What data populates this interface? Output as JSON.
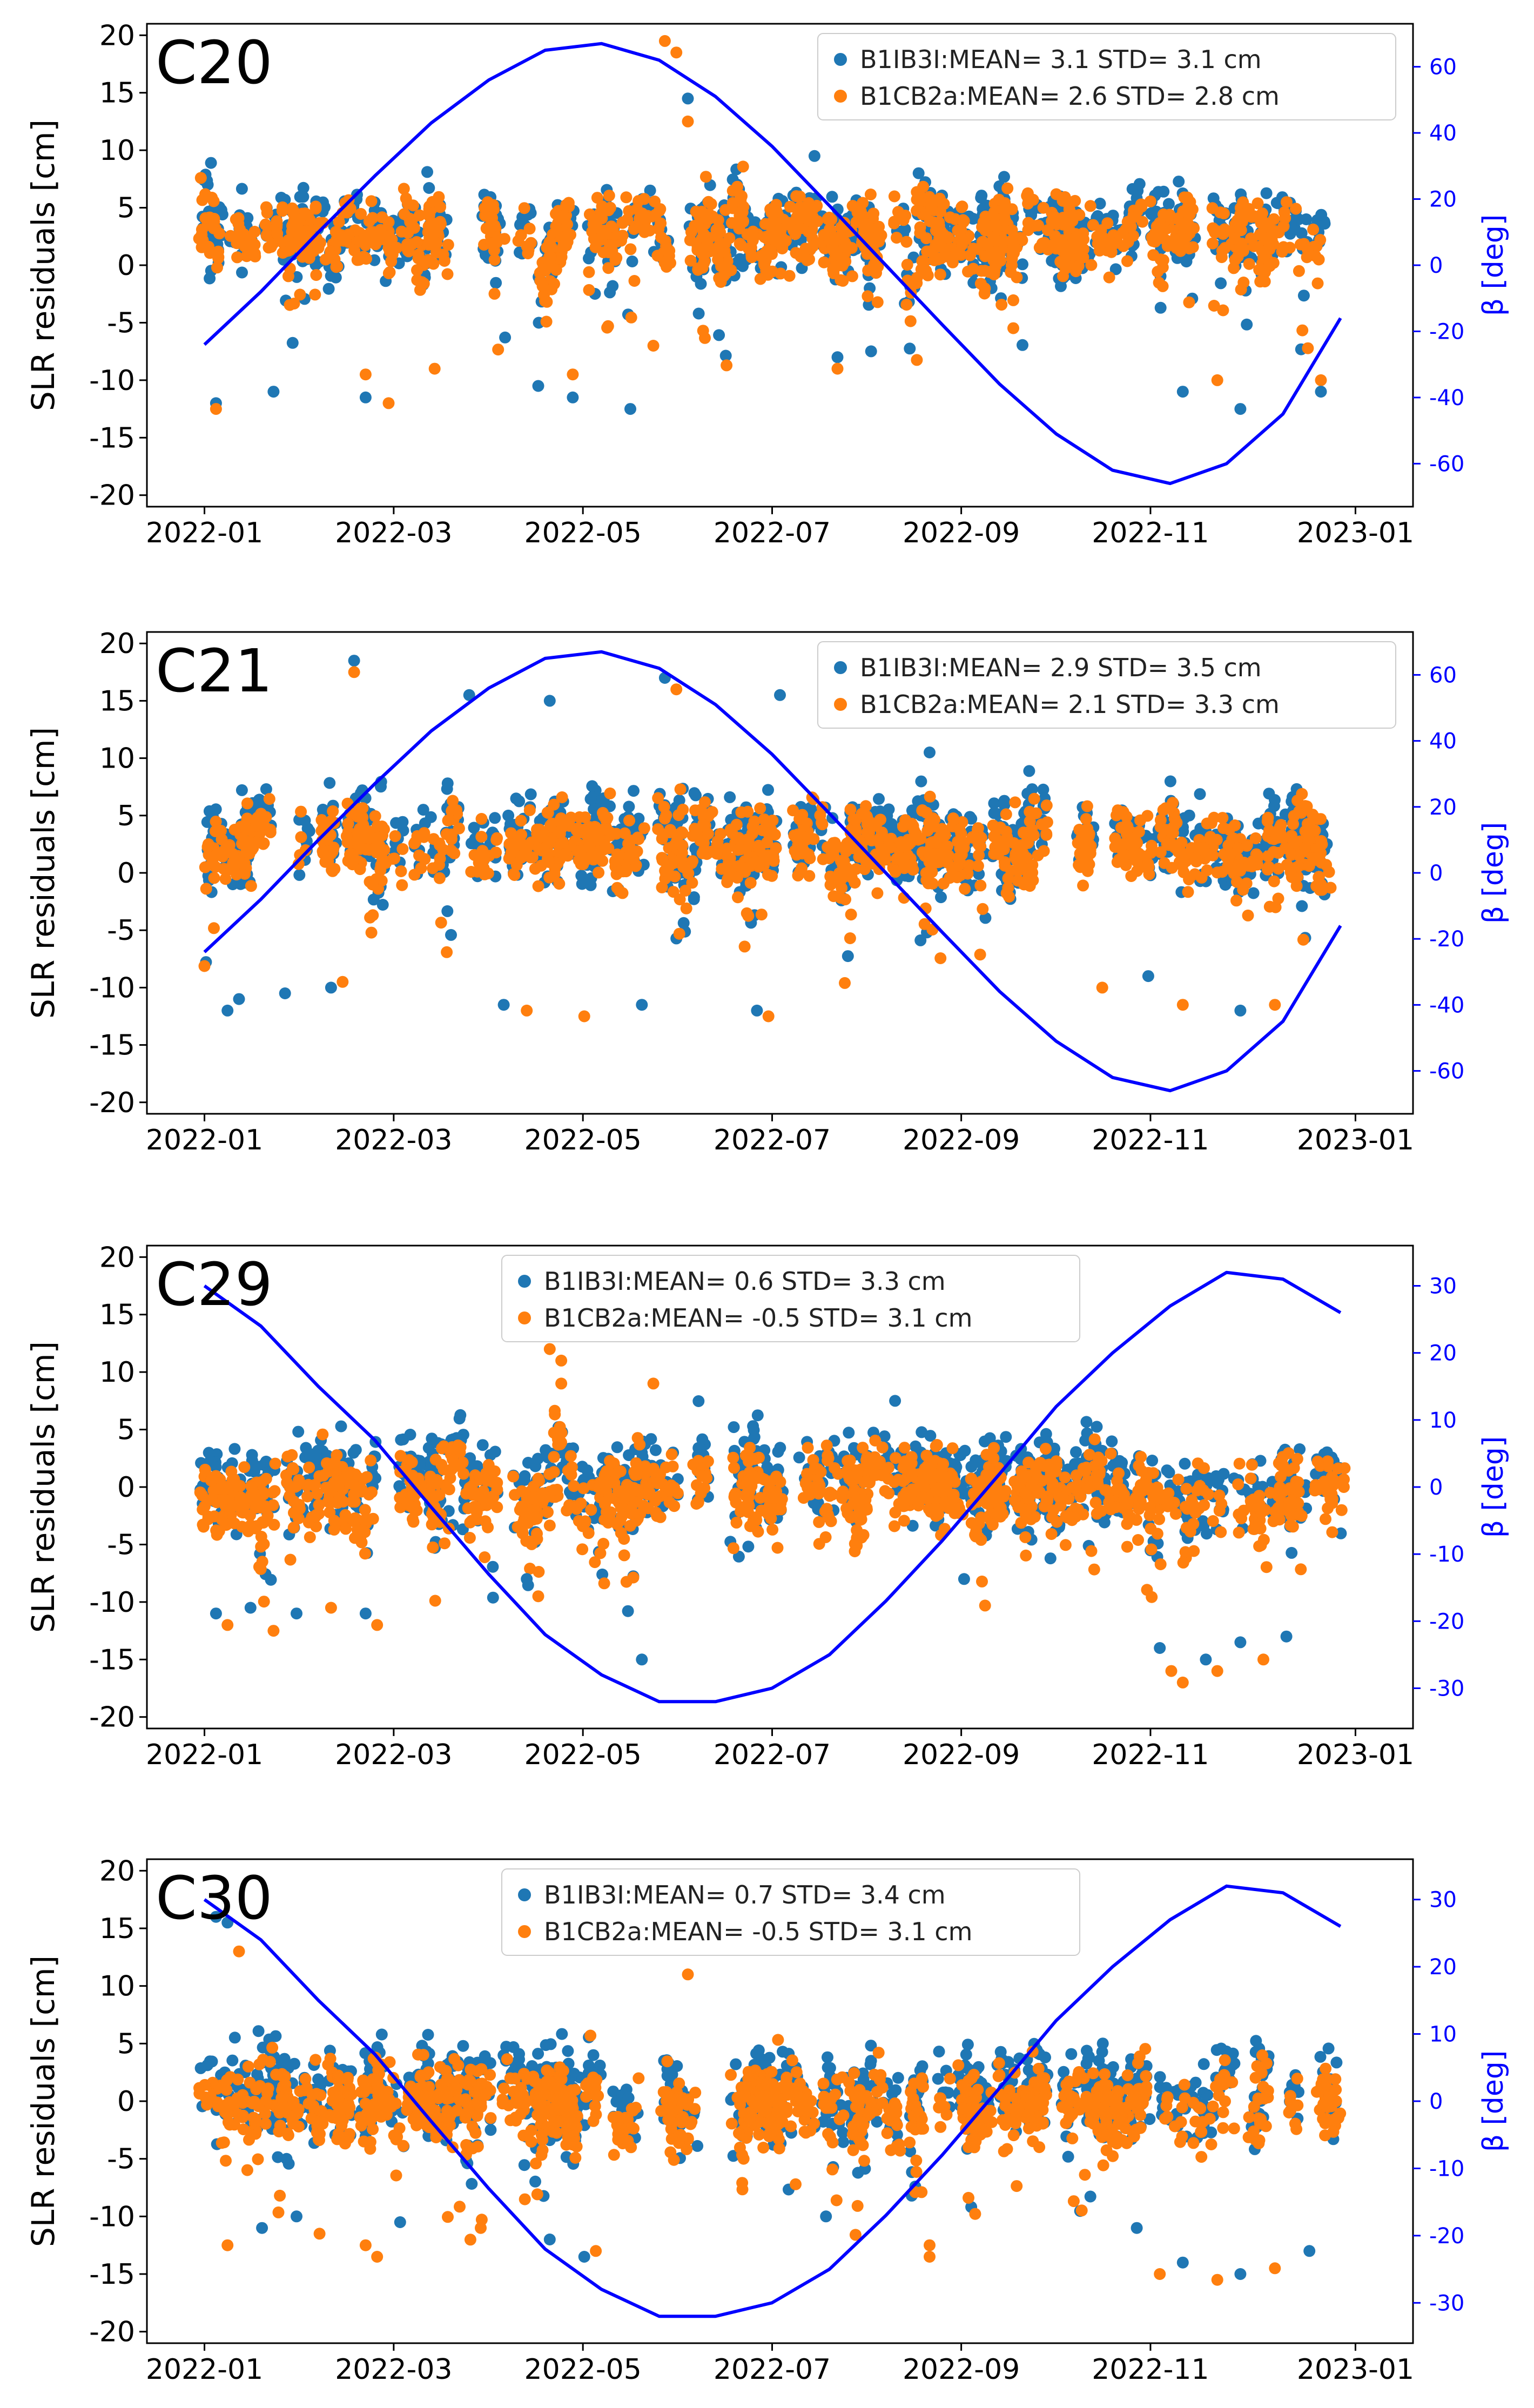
{
  "colors": {
    "b1ib3i": "#1f77b4",
    "b1cb2a": "#ff7f0e",
    "beta": "#0000ff",
    "axis": "#000000",
    "background": "#ffffff"
  },
  "chart_data": [
    {
      "type": "scatter",
      "title": "C20",
      "xlabel": "",
      "ylabel": "SLR residuals [cm]",
      "ylabel_right": "β [deg]",
      "xlim": [
        2021.95,
        2023.05
      ],
      "ylim": [
        -21,
        21
      ],
      "ylim_right": [
        -73,
        73
      ],
      "xticks": [
        2022.0,
        2022.1644,
        2022.3288,
        2022.4932,
        2022.6575,
        2022.8219,
        2023.0
      ],
      "xtick_labels": [
        "2022-01",
        "2022-03",
        "2022-05",
        "2022-07",
        "2022-09",
        "2022-11",
        "2023-01"
      ],
      "yticks": [
        -20,
        -15,
        -10,
        -5,
        0,
        5,
        10,
        15,
        20
      ],
      "ytick_labels": [
        "-20",
        "-15",
        "-10",
        "-5",
        "0",
        "5",
        "10",
        "15",
        "20"
      ],
      "yticks_right": [
        -60,
        -40,
        -20,
        0,
        20,
        40,
        60
      ],
      "ytick_labels_right": [
        "-60",
        "-40",
        "-20",
        "0",
        "20",
        "40",
        "60"
      ],
      "legend_loc": "upper right",
      "legend": [
        "B1IB3I:MEAN= 3.1 STD= 3.1 cm",
        "B1CB2a:MEAN= 2.6 STD= 2.8 cm"
      ],
      "series": [
        {
          "name": "B1IB3I",
          "mean": 3.1,
          "std": 3.1,
          "seed": 11
        },
        {
          "name": "B1CB2a",
          "mean": 2.6,
          "std": 2.8,
          "seed": 12
        }
      ],
      "beta_curve": {
        "x": [
          2022.0,
          2022.049,
          2022.099,
          2022.148,
          2022.197,
          2022.247,
          2022.296,
          2022.345,
          2022.395,
          2022.444,
          2022.493,
          2022.543,
          2022.592,
          2022.641,
          2022.691,
          2022.74,
          2022.789,
          2022.839,
          2022.888,
          2022.937,
          2022.987
        ],
        "y": [
          -24,
          -8,
          10,
          27,
          43,
          56,
          65,
          67,
          62,
          51,
          36,
          18,
          0,
          -18,
          -36,
          -51,
          -62,
          -66,
          -60,
          -45,
          -16
        ]
      },
      "outliers": [
        {
          "x": 2022.01,
          "y": -12,
          "s": 0
        },
        {
          "x": 2022.01,
          "y": -12.5,
          "s": 1
        },
        {
          "x": 2022.06,
          "y": -11,
          "s": 0
        },
        {
          "x": 2022.14,
          "y": -11.5,
          "s": 0
        },
        {
          "x": 2022.14,
          "y": -9.5,
          "s": 1
        },
        {
          "x": 2022.16,
          "y": -12,
          "s": 1
        },
        {
          "x": 2022.2,
          "y": -9,
          "s": 1
        },
        {
          "x": 2022.29,
          "y": -10.5,
          "s": 0
        },
        {
          "x": 2022.32,
          "y": -11.5,
          "s": 0
        },
        {
          "x": 2022.32,
          "y": -9.5,
          "s": 1
        },
        {
          "x": 2022.37,
          "y": -12.5,
          "s": 0
        },
        {
          "x": 2022.39,
          "y": -7,
          "s": 1
        },
        {
          "x": 2022.4,
          "y": 19.5,
          "s": 1
        },
        {
          "x": 2022.41,
          "y": 18.5,
          "s": 1
        },
        {
          "x": 2022.42,
          "y": 14.5,
          "s": 0
        },
        {
          "x": 2022.42,
          "y": 12.5,
          "s": 1
        },
        {
          "x": 2022.53,
          "y": 9.5,
          "s": 0
        },
        {
          "x": 2022.55,
          "y": -8,
          "s": 0
        },
        {
          "x": 2022.55,
          "y": -9,
          "s": 1
        },
        {
          "x": 2022.85,
          "y": -11,
          "s": 0
        },
        {
          "x": 2022.88,
          "y": -10,
          "s": 1
        },
        {
          "x": 2022.9,
          "y": -12.5,
          "s": 0
        },
        {
          "x": 2022.97,
          "y": -10,
          "s": 1
        },
        {
          "x": 2022.97,
          "y": -11,
          "s": 0
        }
      ]
    },
    {
      "type": "scatter",
      "title": "C21",
      "xlabel": "",
      "ylabel": "SLR residuals [cm]",
      "ylabel_right": "β [deg]",
      "xlim": [
        2021.95,
        2023.05
      ],
      "ylim": [
        -21,
        21
      ],
      "ylim_right": [
        -73,
        73
      ],
      "xticks": [
        2022.0,
        2022.1644,
        2022.3288,
        2022.4932,
        2022.6575,
        2022.8219,
        2023.0
      ],
      "xtick_labels": [
        "2022-01",
        "2022-03",
        "2022-05",
        "2022-07",
        "2022-09",
        "2022-11",
        "2023-01"
      ],
      "yticks": [
        -20,
        -15,
        -10,
        -5,
        0,
        5,
        10,
        15,
        20
      ],
      "ytick_labels": [
        "-20",
        "-15",
        "-10",
        "-5",
        "0",
        "5",
        "10",
        "15",
        "20"
      ],
      "yticks_right": [
        -60,
        -40,
        -20,
        0,
        20,
        40,
        60
      ],
      "ytick_labels_right": [
        "-60",
        "-40",
        "-20",
        "0",
        "20",
        "40",
        "60"
      ],
      "legend_loc": "upper right",
      "legend": [
        "B1IB3I:MEAN= 2.9 STD= 3.5 cm",
        "B1CB2a:MEAN= 2.1 STD= 3.3 cm"
      ],
      "series": [
        {
          "name": "B1IB3I",
          "mean": 2.9,
          "std": 3.5,
          "seed": 21
        },
        {
          "name": "B1CB2a",
          "mean": 2.1,
          "std": 3.3,
          "seed": 22
        }
      ],
      "beta_curve": {
        "x": [
          2022.0,
          2022.049,
          2022.099,
          2022.148,
          2022.197,
          2022.247,
          2022.296,
          2022.345,
          2022.395,
          2022.444,
          2022.493,
          2022.543,
          2022.592,
          2022.641,
          2022.691,
          2022.74,
          2022.789,
          2022.839,
          2022.888,
          2022.937,
          2022.987
        ],
        "y": [
          -24,
          -8,
          10,
          27,
          43,
          56,
          65,
          67,
          62,
          51,
          36,
          18,
          0,
          -18,
          -36,
          -51,
          -62,
          -66,
          -60,
          -45,
          -16
        ]
      },
      "outliers": [
        {
          "x": 2022.02,
          "y": -12,
          "s": 0
        },
        {
          "x": 2022.03,
          "y": -11,
          "s": 0
        },
        {
          "x": 2022.07,
          "y": -10.5,
          "s": 0
        },
        {
          "x": 2022.11,
          "y": -10,
          "s": 0
        },
        {
          "x": 2022.12,
          "y": -9.5,
          "s": 1
        },
        {
          "x": 2022.13,
          "y": 18.5,
          "s": 0
        },
        {
          "x": 2022.13,
          "y": 17.5,
          "s": 1
        },
        {
          "x": 2022.23,
          "y": 15.5,
          "s": 0
        },
        {
          "x": 2022.26,
          "y": -11.5,
          "s": 0
        },
        {
          "x": 2022.28,
          "y": -12,
          "s": 1
        },
        {
          "x": 2022.3,
          "y": 15,
          "s": 0
        },
        {
          "x": 2022.33,
          "y": -12.5,
          "s": 1
        },
        {
          "x": 2022.38,
          "y": -11.5,
          "s": 0
        },
        {
          "x": 2022.4,
          "y": 17,
          "s": 0
        },
        {
          "x": 2022.41,
          "y": 16,
          "s": 1
        },
        {
          "x": 2022.48,
          "y": -12,
          "s": 0
        },
        {
          "x": 2022.49,
          "y": -12.5,
          "s": 1
        },
        {
          "x": 2022.5,
          "y": 15.5,
          "s": 0
        },
        {
          "x": 2022.63,
          "y": 10.5,
          "s": 0
        },
        {
          "x": 2022.78,
          "y": -10,
          "s": 1
        },
        {
          "x": 2022.82,
          "y": -9,
          "s": 0
        },
        {
          "x": 2022.85,
          "y": -11.5,
          "s": 1
        },
        {
          "x": 2022.9,
          "y": -12,
          "s": 0
        },
        {
          "x": 2022.93,
          "y": -11.5,
          "s": 1
        }
      ]
    },
    {
      "type": "scatter",
      "title": "C29",
      "xlabel": "",
      "ylabel": "SLR residuals [cm]",
      "ylabel_right": "β [deg]",
      "xlim": [
        2021.95,
        2023.05
      ],
      "ylim": [
        -21,
        21
      ],
      "ylim_right": [
        -36,
        36
      ],
      "xticks": [
        2022.0,
        2022.1644,
        2022.3288,
        2022.4932,
        2022.6575,
        2022.8219,
        2023.0
      ],
      "xtick_labels": [
        "2022-01",
        "2022-03",
        "2022-05",
        "2022-07",
        "2022-09",
        "2022-11",
        "2023-01"
      ],
      "yticks": [
        -20,
        -15,
        -10,
        -5,
        0,
        5,
        10,
        15,
        20
      ],
      "ytick_labels": [
        "-20",
        "-15",
        "-10",
        "-5",
        "0",
        "5",
        "10",
        "15",
        "20"
      ],
      "yticks_right": [
        -30,
        -20,
        -10,
        0,
        10,
        20,
        30
      ],
      "ytick_labels_right": [
        "-30",
        "-20",
        "-10",
        "0",
        "10",
        "20",
        "30"
      ],
      "legend_loc": "upper center",
      "legend": [
        "B1IB3I:MEAN= 0.6 STD= 3.3 cm",
        "B1CB2a:MEAN= -0.5 STD= 3.1 cm"
      ],
      "series": [
        {
          "name": "B1IB3I",
          "mean": 0.6,
          "std": 3.3,
          "seed": 31
        },
        {
          "name": "B1CB2a",
          "mean": -0.5,
          "std": 3.1,
          "seed": 32
        }
      ],
      "beta_curve": {
        "x": [
          2022.0,
          2022.049,
          2022.099,
          2022.148,
          2022.197,
          2022.247,
          2022.296,
          2022.345,
          2022.395,
          2022.444,
          2022.493,
          2022.543,
          2022.592,
          2022.641,
          2022.691,
          2022.74,
          2022.789,
          2022.839,
          2022.888,
          2022.937,
          2022.987
        ],
        "y": [
          30,
          24,
          15,
          7,
          -3,
          -13,
          -22,
          -28,
          -32,
          -32,
          -30,
          -25,
          -17,
          -8,
          2,
          12,
          20,
          27,
          32,
          31,
          26
        ]
      },
      "outliers": [
        {
          "x": 2022.01,
          "y": -11,
          "s": 0
        },
        {
          "x": 2022.02,
          "y": -12,
          "s": 1
        },
        {
          "x": 2022.04,
          "y": -10.5,
          "s": 0
        },
        {
          "x": 2022.06,
          "y": -12.5,
          "s": 1
        },
        {
          "x": 2022.08,
          "y": -11,
          "s": 0
        },
        {
          "x": 2022.11,
          "y": -10.5,
          "s": 1
        },
        {
          "x": 2022.14,
          "y": -11,
          "s": 0
        },
        {
          "x": 2022.15,
          "y": -12,
          "s": 1
        },
        {
          "x": 2022.28,
          "y": -8,
          "s": 0
        },
        {
          "x": 2022.29,
          "y": -9.5,
          "s": 1
        },
        {
          "x": 2022.3,
          "y": 12,
          "s": 1
        },
        {
          "x": 2022.31,
          "y": 11,
          "s": 1
        },
        {
          "x": 2022.31,
          "y": 9,
          "s": 1
        },
        {
          "x": 2022.38,
          "y": -15,
          "s": 0
        },
        {
          "x": 2022.39,
          "y": 9,
          "s": 1
        },
        {
          "x": 2022.6,
          "y": 7.5,
          "s": 0
        },
        {
          "x": 2022.66,
          "y": -8,
          "s": 0
        },
        {
          "x": 2022.83,
          "y": -14,
          "s": 0
        },
        {
          "x": 2022.84,
          "y": -16,
          "s": 1
        },
        {
          "x": 2022.85,
          "y": -17,
          "s": 1
        },
        {
          "x": 2022.87,
          "y": -15,
          "s": 0
        },
        {
          "x": 2022.88,
          "y": -16,
          "s": 1
        },
        {
          "x": 2022.9,
          "y": -13.5,
          "s": 0
        },
        {
          "x": 2022.92,
          "y": -15,
          "s": 1
        },
        {
          "x": 2022.94,
          "y": -13,
          "s": 0
        }
      ]
    },
    {
      "type": "scatter",
      "title": "C30",
      "xlabel": "",
      "ylabel": "SLR residuals [cm]",
      "ylabel_right": "β [deg]",
      "xlim": [
        2021.95,
        2023.05
      ],
      "ylim": [
        -21,
        21
      ],
      "ylim_right": [
        -36,
        36
      ],
      "xticks": [
        2022.0,
        2022.1644,
        2022.3288,
        2022.4932,
        2022.6575,
        2022.8219,
        2023.0
      ],
      "xtick_labels": [
        "2022-01",
        "2022-03",
        "2022-05",
        "2022-07",
        "2022-09",
        "2022-11",
        "2023-01"
      ],
      "yticks": [
        -20,
        -15,
        -10,
        -5,
        0,
        5,
        10,
        15,
        20
      ],
      "ytick_labels": [
        "-20",
        "-15",
        "-10",
        "-5",
        "0",
        "5",
        "10",
        "15",
        "20"
      ],
      "yticks_right": [
        -30,
        -20,
        -10,
        0,
        10,
        20,
        30
      ],
      "ytick_labels_right": [
        "-30",
        "-20",
        "-10",
        "0",
        "10",
        "20",
        "30"
      ],
      "legend_loc": "upper center",
      "legend": [
        "B1IB3I:MEAN= 0.7 STD= 3.4 cm",
        "B1CB2a:MEAN= -0.5 STD= 3.1 cm"
      ],
      "series": [
        {
          "name": "B1IB3I",
          "mean": 0.7,
          "std": 3.4,
          "seed": 41
        },
        {
          "name": "B1CB2a",
          "mean": -0.5,
          "std": 3.1,
          "seed": 42
        }
      ],
      "beta_curve": {
        "x": [
          2022.0,
          2022.049,
          2022.099,
          2022.148,
          2022.197,
          2022.247,
          2022.296,
          2022.345,
          2022.395,
          2022.444,
          2022.493,
          2022.543,
          2022.592,
          2022.641,
          2022.691,
          2022.74,
          2022.789,
          2022.839,
          2022.888,
          2022.937,
          2022.987
        ],
        "y": [
          30,
          24,
          15,
          7,
          -3,
          -13,
          -22,
          -28,
          -32,
          -32,
          -30,
          -25,
          -17,
          -8,
          2,
          12,
          20,
          27,
          32,
          31,
          26
        ]
      },
      "outliers": [
        {
          "x": 2022.01,
          "y": 16,
          "s": 0
        },
        {
          "x": 2022.02,
          "y": 15.5,
          "s": 0
        },
        {
          "x": 2022.03,
          "y": 13,
          "s": 1
        },
        {
          "x": 2022.02,
          "y": -12.5,
          "s": 1
        },
        {
          "x": 2022.05,
          "y": -11,
          "s": 0
        },
        {
          "x": 2022.08,
          "y": -10,
          "s": 0
        },
        {
          "x": 2022.1,
          "y": -11.5,
          "s": 1
        },
        {
          "x": 2022.14,
          "y": -12.5,
          "s": 1
        },
        {
          "x": 2022.15,
          "y": -13.5,
          "s": 1
        },
        {
          "x": 2022.17,
          "y": -10.5,
          "s": 0
        },
        {
          "x": 2022.24,
          "y": -11,
          "s": 1
        },
        {
          "x": 2022.3,
          "y": -12,
          "s": 0
        },
        {
          "x": 2022.33,
          "y": -13.5,
          "s": 0
        },
        {
          "x": 2022.34,
          "y": -13,
          "s": 1
        },
        {
          "x": 2022.42,
          "y": 11,
          "s": 1
        },
        {
          "x": 2022.54,
          "y": -10,
          "s": 0
        },
        {
          "x": 2022.63,
          "y": -12.5,
          "s": 1
        },
        {
          "x": 2022.63,
          "y": -13.5,
          "s": 1
        },
        {
          "x": 2022.81,
          "y": -11,
          "s": 0
        },
        {
          "x": 2022.83,
          "y": -15,
          "s": 1
        },
        {
          "x": 2022.85,
          "y": -14,
          "s": 0
        },
        {
          "x": 2022.88,
          "y": -15.5,
          "s": 1
        },
        {
          "x": 2022.9,
          "y": -15,
          "s": 0
        },
        {
          "x": 2022.93,
          "y": -14.5,
          "s": 1
        },
        {
          "x": 2022.96,
          "y": -13,
          "s": 0
        }
      ]
    }
  ]
}
